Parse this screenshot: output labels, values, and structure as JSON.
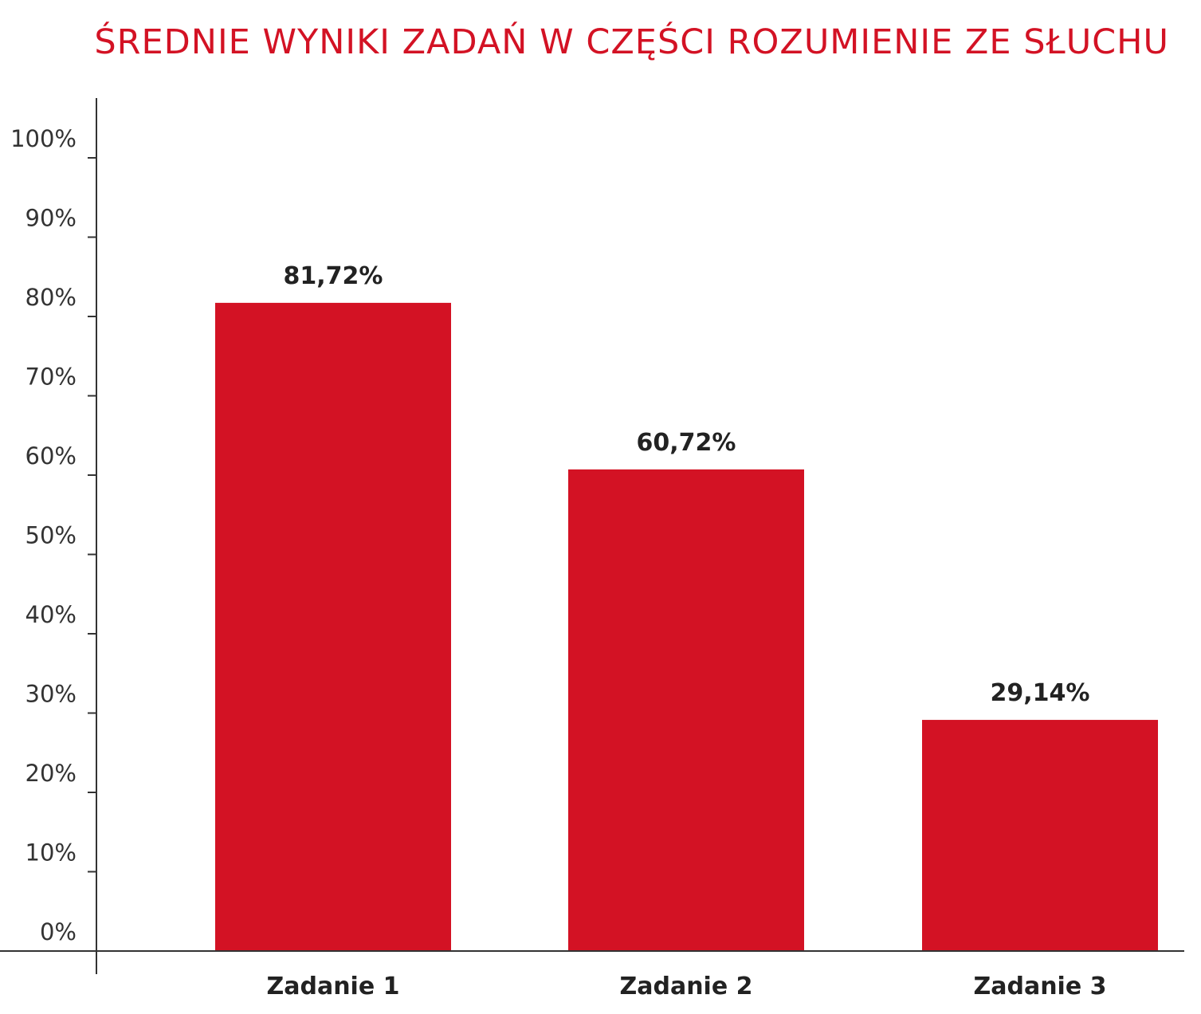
{
  "chart_data": {
    "type": "bar",
    "title": "ŚREDNIE WYNIKI ZADAŃ W CZĘŚCI ROZUMIENIE ZE SŁUCHU",
    "xlabel": "",
    "ylabel": "",
    "categories": [
      "Zadanie 1",
      "Zadanie 2",
      "Zadanie 3"
    ],
    "values": [
      81.72,
      60.72,
      29.14
    ],
    "value_labels": [
      "81,72%",
      "60,72%",
      "29,14%"
    ],
    "ylim": [
      0,
      100
    ],
    "yticks": [
      0,
      10,
      20,
      30,
      40,
      50,
      60,
      70,
      80,
      90,
      100
    ],
    "ytick_labels": [
      "0%",
      "10%",
      "20%",
      "30%",
      "40%",
      "50%",
      "60%",
      "70%",
      "80%",
      "90%",
      "100%"
    ],
    "grid": false,
    "legend": "none",
    "colors": {
      "bar": "#d31224",
      "title": "#d31224",
      "axis": "#333333"
    }
  }
}
